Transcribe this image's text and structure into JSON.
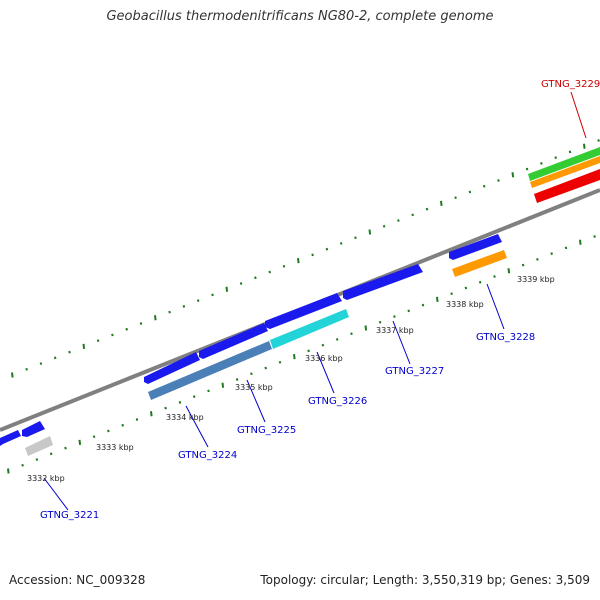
{
  "header": {
    "title": "Geobacillus thermodenitrificans NG80-2, complete genome"
  },
  "footer": {
    "accession": "Accession: NC_009328",
    "topology": "Topology: circular; Length: 3,550,319 bp; Genes: 3,509"
  },
  "map": {
    "kbp_labels": [
      "3332 kbp",
      "3333 kbp",
      "3334 kbp",
      "3335 kbp",
      "3336 kbp",
      "3337 kbp",
      "3338 kbp",
      "3339 kbp"
    ],
    "gene_labels": [
      {
        "text": "GTNG_3221",
        "color": "#0000cc"
      },
      {
        "text": "GTNG_3224",
        "color": "#0000cc"
      },
      {
        "text": "GTNG_3225",
        "color": "#0000cc"
      },
      {
        "text": "GTNG_3226",
        "color": "#0000cc"
      },
      {
        "text": "GTNG_3227",
        "color": "#0000cc"
      },
      {
        "text": "GTNG_3228",
        "color": "#0000cc"
      },
      {
        "text": "GTNG_3229",
        "color": "#cc0000"
      }
    ],
    "colors": {
      "backbone": "#808080",
      "tick": "#1f7a1f",
      "forward_gene": "#1a1aee",
      "reverse_gene": "#4a7fb8",
      "cyan_gene": "#22d3d8",
      "orange_gene": "#ff9900",
      "gray_gene": "#c8c8c8",
      "red_gene": "#ee0000",
      "green_gene": "#33cc33"
    }
  }
}
